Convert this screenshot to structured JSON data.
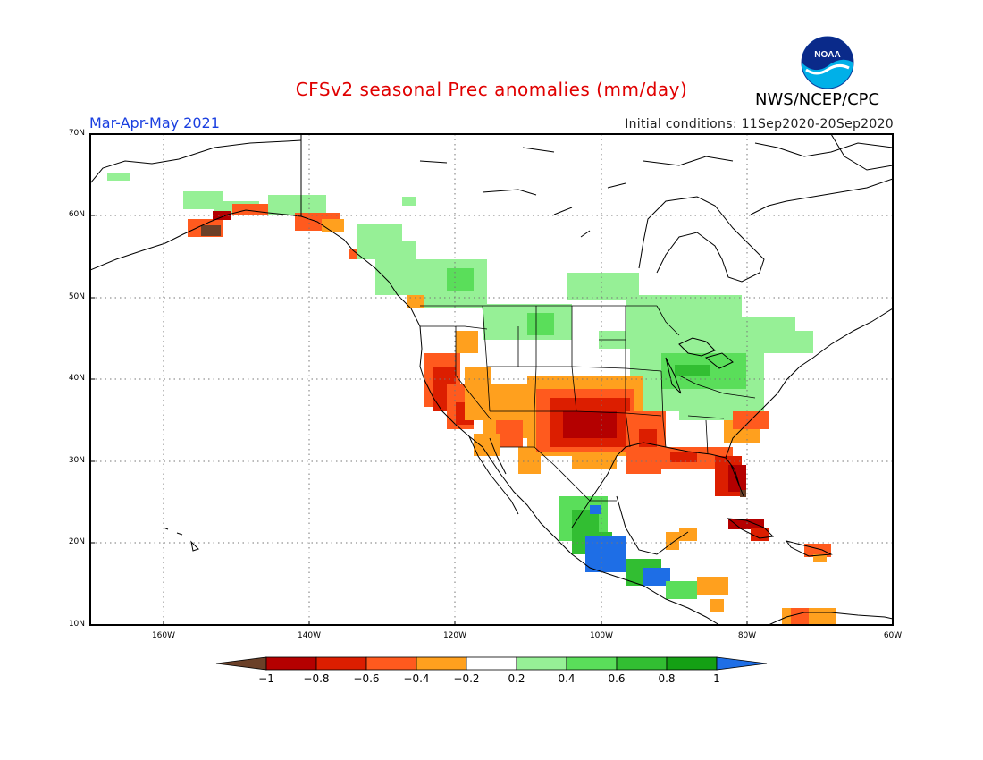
{
  "header": {
    "title": "CFSv2 seasonal Prec anomalies (mm/day)",
    "organization": "NWS/NCEP/CPC",
    "season": "Mar-Apr-May 2021",
    "initial_conditions": "Initial conditions: 11Sep2020-20Sep2020",
    "logo_text": "NOAA"
  },
  "map": {
    "lon_range": [
      -172,
      -60
    ],
    "lat_range": [
      10,
      70
    ],
    "x_ticks": [
      "160W",
      "140W",
      "120W",
      "100W",
      "80W",
      "60W"
    ],
    "y_ticks": [
      "70N",
      "60N",
      "50N",
      "40N",
      "30N",
      "20N",
      "10N"
    ]
  },
  "colorbar": {
    "ticks": [
      "−1",
      "−0.8",
      "−0.6",
      "−0.4",
      "−0.2",
      "0.2",
      "0.4",
      "0.6",
      "0.8",
      "1"
    ],
    "colors": [
      "#6b4028",
      "#b40000",
      "#dc1e00",
      "#ff5a1e",
      "#ffa01e",
      "#ffffff",
      "#96f096",
      "#5ade5a",
      "#32be32",
      "#14a014",
      "#1e6ee6"
    ]
  }
}
